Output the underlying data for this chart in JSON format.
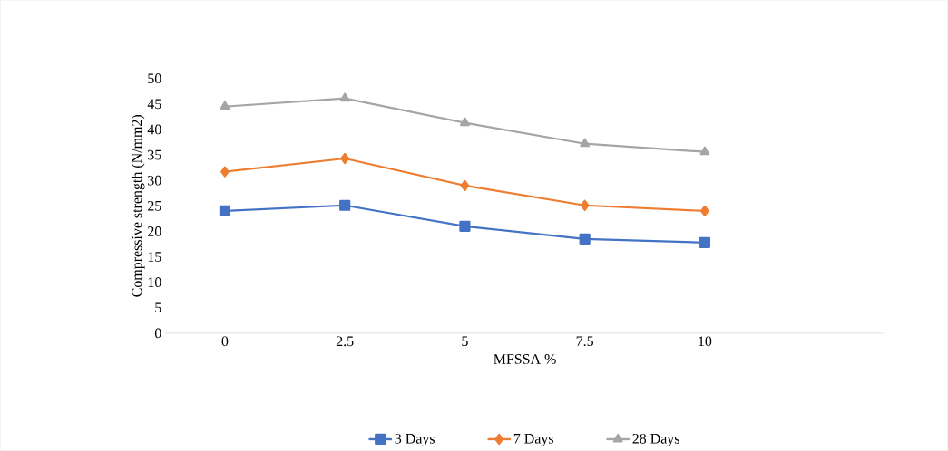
{
  "chart_data": {
    "type": "line",
    "xlabel": "MFSSA %",
    "ylabel": "Compressive strength (N/mm2)",
    "categories": [
      "0",
      "2.5",
      "5",
      "7.5",
      "10",
      null
    ],
    "ylim": [
      0,
      50
    ],
    "yticks": [
      0,
      5,
      10,
      15,
      20,
      25,
      30,
      35,
      40,
      45,
      50
    ],
    "grid": false,
    "legend": "bottom",
    "series": [
      {
        "name": "3 Days",
        "color": "#4472c4",
        "marker": "square",
        "values": [
          24.0,
          25.1,
          21.0,
          18.5,
          17.8,
          null
        ]
      },
      {
        "name": "7 Days",
        "color": "#ed7d31",
        "marker": "diamond",
        "values": [
          31.7,
          34.3,
          29.0,
          25.1,
          24.0,
          null
        ]
      },
      {
        "name": "28 Days",
        "color": "#a5a5a5",
        "marker": "triangle",
        "values": [
          44.5,
          46.1,
          41.3,
          37.2,
          35.6,
          null
        ]
      }
    ]
  }
}
